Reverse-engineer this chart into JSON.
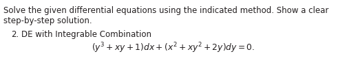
{
  "background_color": "#ffffff",
  "text_color": "#231f20",
  "figsize": [
    5.04,
    1.17
  ],
  "dpi": 100,
  "line1": "Solve the given differential equations using the indicated method. Show a clear",
  "line2": "step-by-step solution.",
  "item_number": "2.",
  "item_label": "  DE with Integrable Combination",
  "equation": "$(y^3+xy+1)dx+(x^2+xy^2+2y)dy=0.$",
  "font_size_body": 8.5,
  "font_size_eq": 8.8,
  "font_size_item": 8.5
}
